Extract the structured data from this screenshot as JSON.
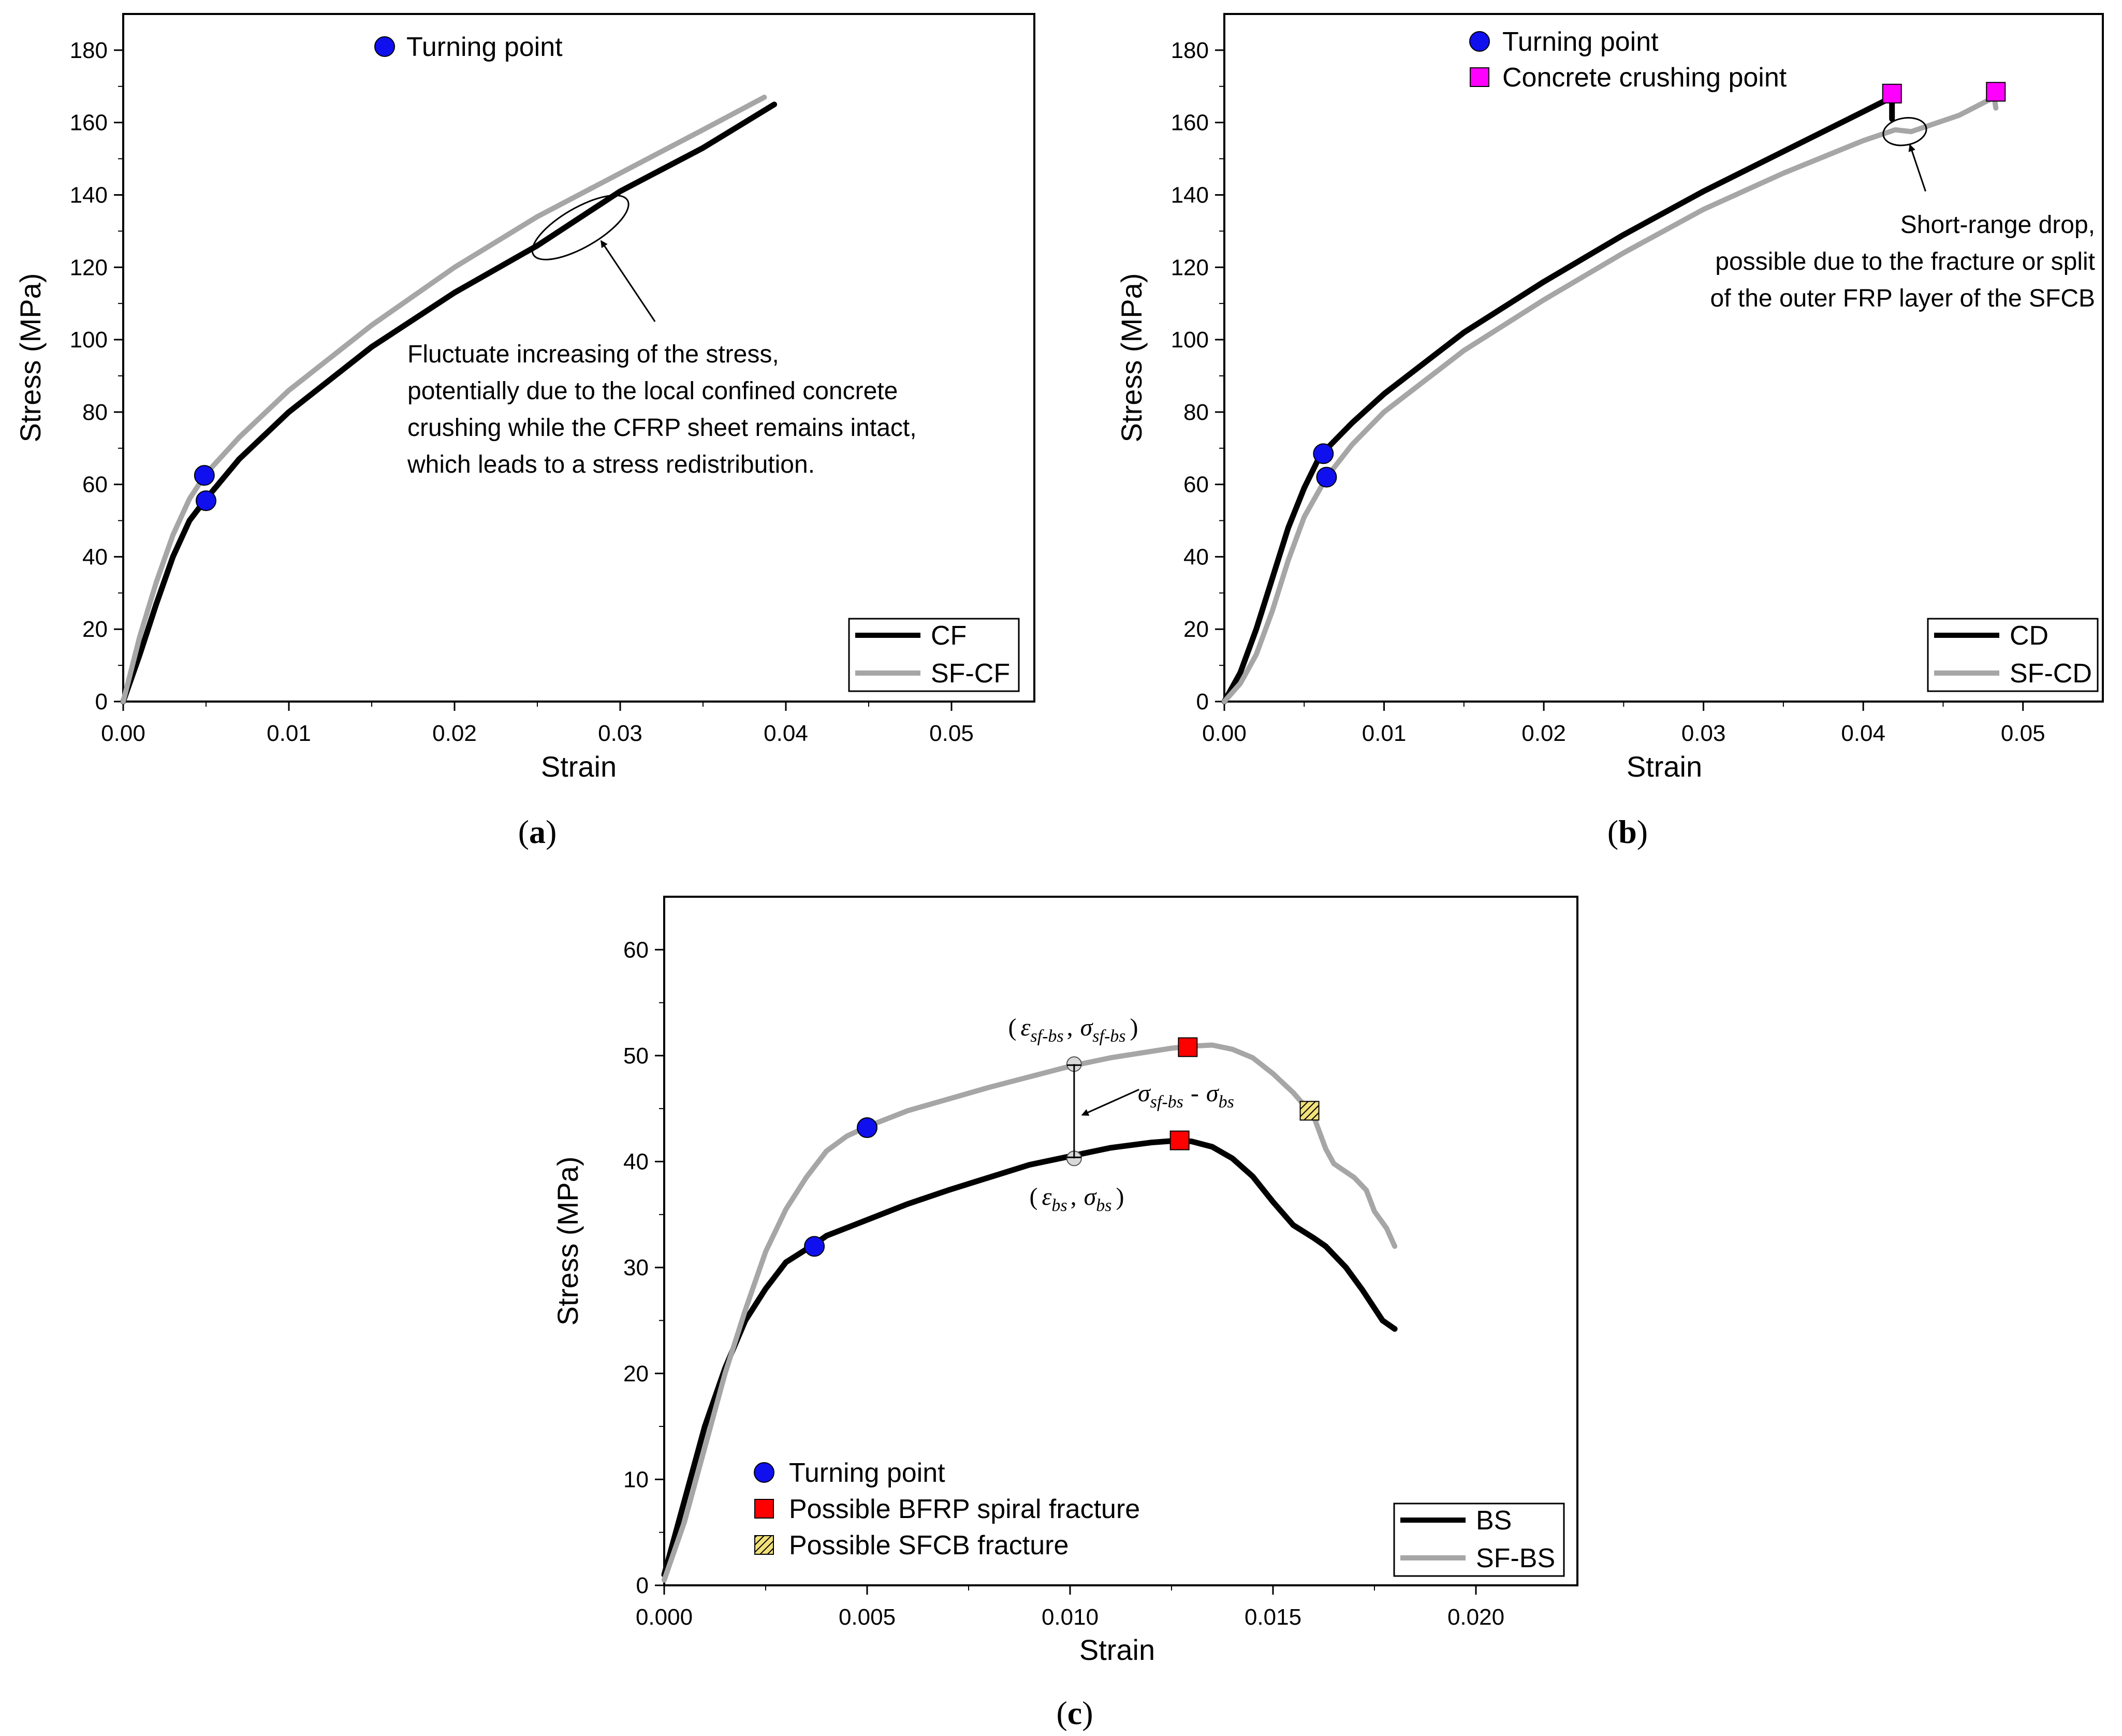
{
  "colors": {
    "black_series": "#000000",
    "gray_series": "#a6a6a6",
    "turning_point": "#1010ee",
    "crushing_point": "#ff00ff",
    "spiral_fracture": "#ff0000",
    "sfcb_fracture_fill": "#f2e07a"
  },
  "chart_data": [
    {
      "panel": "a",
      "type": "line",
      "xlabel": "Strain",
      "ylabel": "Stress (MPa)",
      "xlim": [
        0,
        0.055
      ],
      "ylim": [
        0,
        190
      ],
      "xticks": [
        "0.00",
        "0.01",
        "0.02",
        "0.03",
        "0.04",
        "0.05"
      ],
      "yticks": [
        "0",
        "20",
        "40",
        "60",
        "80",
        "100",
        "120",
        "140",
        "160",
        "180"
      ],
      "legend": {
        "placement": "bottom-right",
        "entries": [
          "CF",
          "SF-CF"
        ]
      },
      "series": [
        {
          "name": "CF",
          "color_key": "black_series",
          "x": [
            0,
            0.001,
            0.002,
            0.003,
            0.004,
            0.005,
            0.007,
            0.01,
            0.015,
            0.02,
            0.025,
            0.028,
            0.03,
            0.035,
            0.0393
          ],
          "y": [
            0,
            13,
            27,
            40,
            50,
            56,
            67,
            80,
            98,
            113,
            126,
            135,
            141,
            153,
            165
          ]
        },
        {
          "name": "SF-CF",
          "color_key": "gray_series",
          "x": [
            0,
            0.001,
            0.002,
            0.003,
            0.004,
            0.005,
            0.007,
            0.01,
            0.015,
            0.02,
            0.025,
            0.03,
            0.035,
            0.0387
          ],
          "y": [
            0,
            18,
            33,
            46,
            56,
            63,
            73,
            86,
            104,
            120,
            134,
            146,
            158,
            167
          ]
        }
      ],
      "markers": [
        {
          "kind": "turning",
          "x": 0.0049,
          "y": 62.5
        },
        {
          "kind": "turning",
          "x": 0.005,
          "y": 55.5
        }
      ],
      "marker_legend": [
        {
          "kind": "turning",
          "label": "Turning point"
        }
      ],
      "annotations": {
        "ellipse_center": {
          "x": 0.0276,
          "y": 131
        },
        "arrow_tail": {
          "x": 0.0321,
          "y": 105
        },
        "lines": [
          "Fluctuate increasing of the stress,",
          "potentially due to the local confined concrete",
          "crushing while the CFRP sheet remains intact,",
          "which leads to a stress redistribution."
        ]
      },
      "panel_label": {
        "open": "(",
        "letter": "a",
        "close": ")"
      }
    },
    {
      "panel": "b",
      "type": "line",
      "xlabel": "Strain",
      "ylabel": "Stress (MPa)",
      "xlim": [
        0,
        0.055
      ],
      "ylim": [
        0,
        190
      ],
      "xticks": [
        "0.00",
        "0.01",
        "0.02",
        "0.03",
        "0.04",
        "0.05"
      ],
      "yticks": [
        "0",
        "20",
        "40",
        "60",
        "80",
        "100",
        "120",
        "140",
        "160",
        "180"
      ],
      "legend": {
        "placement": "bottom-right",
        "entries": [
          "CD",
          "SF-CD"
        ]
      },
      "series": [
        {
          "name": "CD",
          "color_key": "black_series",
          "x": [
            0,
            0.001,
            0.002,
            0.003,
            0.004,
            0.005,
            0.006,
            0.008,
            0.01,
            0.015,
            0.02,
            0.025,
            0.03,
            0.035,
            0.04,
            0.0418,
            0.0418
          ],
          "y": [
            0,
            8,
            20,
            34,
            48,
            59,
            68,
            77,
            85,
            102,
            116,
            129,
            141,
            152,
            163,
            167,
            161
          ]
        },
        {
          "name": "SF-CD",
          "color_key": "gray_series",
          "x": [
            0,
            0.001,
            0.002,
            0.003,
            0.004,
            0.005,
            0.0064,
            0.008,
            0.01,
            0.015,
            0.02,
            0.025,
            0.03,
            0.035,
            0.04,
            0.042,
            0.043,
            0.046,
            0.0482,
            0.0483
          ],
          "y": [
            0,
            5,
            13,
            25,
            39,
            51,
            62,
            71,
            80,
            97,
            111,
            124,
            136,
            146,
            155,
            158,
            157.5,
            162,
            167,
            164
          ]
        }
      ],
      "markers": [
        {
          "kind": "turning",
          "x": 0.0062,
          "y": 68.5
        },
        {
          "kind": "turning",
          "x": 0.0064,
          "y": 62
        },
        {
          "kind": "crushing",
          "x": 0.0418,
          "y": 168
        },
        {
          "kind": "crushing",
          "x": 0.0483,
          "y": 168.5
        }
      ],
      "marker_legend": [
        {
          "kind": "turning",
          "label": "Turning point"
        },
        {
          "kind": "crushing",
          "label": "Concrete crushing point"
        }
      ],
      "annotations": {
        "ellipse_center": {
          "x": 0.0426,
          "y": 157.5
        },
        "arrow_tail": {
          "x": 0.0439,
          "y": 141
        },
        "lines": [
          "Short-range drop,",
          "possible due to the fracture or split",
          "of the outer FRP layer of the SFCB"
        ]
      },
      "panel_label": {
        "open": "(",
        "letter": "b",
        "close": ")"
      }
    },
    {
      "panel": "c",
      "type": "line",
      "xlabel": "Strain",
      "ylabel": "Stress (MPa)",
      "xlim": [
        0,
        0.0225
      ],
      "ylim": [
        0,
        65
      ],
      "xticks": [
        "0.000",
        "0.005",
        "0.010",
        "0.015",
        "0.020"
      ],
      "yticks": [
        "0",
        "10",
        "20",
        "30",
        "40",
        "50",
        "60"
      ],
      "legend": {
        "placement": "bottom-right",
        "entries": [
          "BS",
          "SF-BS"
        ]
      },
      "series": [
        {
          "name": "BS",
          "color_key": "black_series",
          "x": [
            0,
            0.0005,
            0.001,
            0.0015,
            0.002,
            0.0025,
            0.003,
            0.0037,
            0.004,
            0.005,
            0.006,
            0.007,
            0.008,
            0.009,
            0.01,
            0.011,
            0.012,
            0.0127,
            0.013,
            0.0135,
            0.014,
            0.0145,
            0.015,
            0.0155,
            0.016,
            0.0163,
            0.0168,
            0.0172,
            0.0177,
            0.018
          ],
          "y": [
            1,
            8,
            15,
            20.5,
            25,
            28,
            30.5,
            32.2,
            33,
            34.5,
            36,
            37.3,
            38.5,
            39.7,
            40.5,
            41.3,
            41.8,
            42,
            41.9,
            41.4,
            40.3,
            38.6,
            36.2,
            34,
            32.8,
            32,
            30,
            27.9,
            25,
            24.2
          ]
        },
        {
          "name": "SF-BS",
          "color_key": "gray_series",
          "x": [
            0,
            0.0005,
            0.001,
            0.0015,
            0.002,
            0.0025,
            0.003,
            0.0035,
            0.004,
            0.0045,
            0.005,
            0.006,
            0.007,
            0.008,
            0.009,
            0.01,
            0.011,
            0.012,
            0.0125,
            0.013,
            0.0135,
            0.014,
            0.0145,
            0.015,
            0.0155,
            0.016,
            0.0163,
            0.0165,
            0.017,
            0.0173,
            0.0175,
            0.0178,
            0.018
          ],
          "y": [
            0.5,
            6,
            13,
            20,
            26,
            31.5,
            35.5,
            38.5,
            41,
            42.4,
            43.3,
            44.8,
            45.9,
            47,
            48,
            49,
            49.8,
            50.4,
            50.7,
            50.9,
            51,
            50.6,
            49.8,
            48.3,
            46.5,
            44.3,
            41.2,
            39.8,
            38.5,
            37.3,
            35.3,
            33.7,
            32
          ]
        }
      ],
      "markers": [
        {
          "kind": "turning",
          "x": 0.0037,
          "y": 32
        },
        {
          "kind": "turning",
          "x": 0.005,
          "y": 43.2
        },
        {
          "kind": "spiral",
          "x": 0.0127,
          "y": 42
        },
        {
          "kind": "spiral",
          "x": 0.0129,
          "y": 50.8
        },
        {
          "kind": "sfcb",
          "x": 0.0159,
          "y": 44.8
        },
        {
          "kind": "small",
          "x": 0.0101,
          "y": 49.2
        },
        {
          "kind": "small",
          "x": 0.0101,
          "y": 40.3
        }
      ],
      "marker_legend": [
        {
          "kind": "turning",
          "label": "Turning point"
        },
        {
          "kind": "spiral",
          "label": "Possible BFRP spiral fracture"
        },
        {
          "kind": "sfcb",
          "label": "Possible SFCB fracture"
        }
      ],
      "annotations": {
        "dimension_x": 0.0101,
        "dimension_y_top": 49.2,
        "dimension_y_bottom": 40.3,
        "arrow_tail": {
          "x": 0.0117,
          "y": 46.8
        },
        "arrow_head": {
          "x": 0.0103,
          "y": 44.4
        },
        "top_point": {
          "open": "(",
          "eps": "ε",
          "eps_sub": "sf-bs",
          "sep": ",",
          "sig": "σ",
          "sig_sub": "sf-bs",
          "close": ")"
        },
        "bottom_point": {
          "open": "(",
          "eps": "ε",
          "eps_sub": "bs",
          "sep": ",",
          "sig": "σ",
          "sig_sub": "bs",
          "close": ")"
        },
        "difference": {
          "sig1": "σ",
          "sub1": "sf-bs",
          "minus": "-",
          "sig2": "σ",
          "sub2": "bs"
        }
      },
      "panel_label": {
        "open": "(",
        "letter": "c",
        "close": ")"
      }
    }
  ]
}
